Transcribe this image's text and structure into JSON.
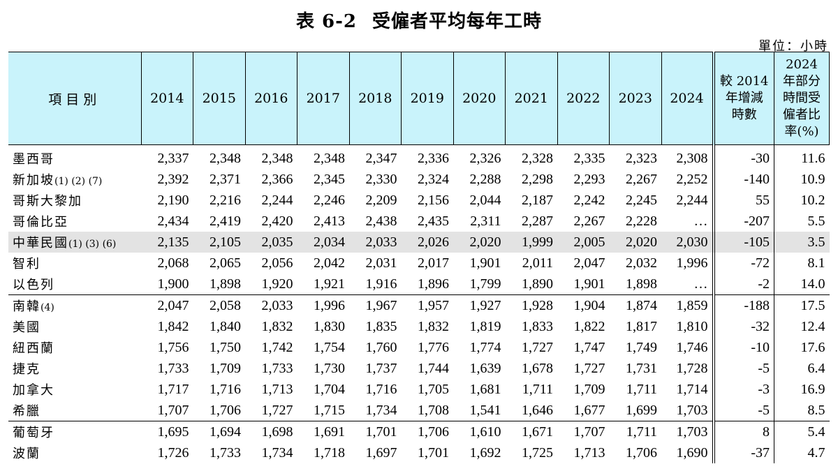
{
  "title": {
    "number": "表 6-2",
    "text": "受僱者平均每年工時"
  },
  "unit": "單位：小時",
  "header": {
    "item": "項目別",
    "years": [
      "2014",
      "2015",
      "2016",
      "2017",
      "2018",
      "2019",
      "2020",
      "2021",
      "2022",
      "2023",
      "2024"
    ],
    "diff": [
      "較 2014",
      "年增減",
      "時數"
    ],
    "part": [
      "2024",
      "年部分",
      "時間受",
      "僱者比",
      "率(%)"
    ]
  },
  "rows": [
    {
      "name": "墨西哥",
      "note": "",
      "values": [
        "2,337",
        "2,348",
        "2,348",
        "2,348",
        "2,347",
        "2,336",
        "2,326",
        "2,328",
        "2,335",
        "2,323",
        "2,308"
      ],
      "diff": "-30",
      "part": "11.6"
    },
    {
      "name": "新加坡",
      "note": "(1) (2) (7)",
      "values": [
        "2,392",
        "2,371",
        "2,366",
        "2,345",
        "2,330",
        "2,324",
        "2,288",
        "2,298",
        "2,293",
        "2,267",
        "2,252"
      ],
      "diff": "-140",
      "part": "10.9"
    },
    {
      "name": "哥斯大黎加",
      "note": "",
      "values": [
        "2,190",
        "2,216",
        "2,244",
        "2,246",
        "2,209",
        "2,156",
        "2,044",
        "2,187",
        "2,242",
        "2,245",
        "2,244"
      ],
      "diff": "55",
      "part": "10.2"
    },
    {
      "name": "哥倫比亞",
      "note": "",
      "values": [
        "2,434",
        "2,419",
        "2,420",
        "2,413",
        "2,438",
        "2,435",
        "2,311",
        "2,287",
        "2,267",
        "2,228",
        "…"
      ],
      "diff": "-207",
      "part": "5.5"
    },
    {
      "name": "中華民國",
      "note": "(1) (3) (6)",
      "values": [
        "2,135",
        "2,105",
        "2,035",
        "2,034",
        "2,033",
        "2,026",
        "2,020",
        "1,999",
        "2,005",
        "2,020",
        "2,030"
      ],
      "diff": "-105",
      "part": "3.5"
    },
    {
      "name": "智利",
      "note": "",
      "values": [
        "2,068",
        "2,065",
        "2,056",
        "2,042",
        "2,031",
        "2,017",
        "1,901",
        "2,011",
        "2,047",
        "2,032",
        "1,996"
      ],
      "diff": "-72",
      "part": "8.1"
    },
    {
      "name": "以色列",
      "note": "",
      "values": [
        "1,900",
        "1,898",
        "1,920",
        "1,921",
        "1,916",
        "1,896",
        "1,799",
        "1,890",
        "1,901",
        "1,898",
        "…"
      ],
      "diff": "-2",
      "part": "14.0"
    },
    {
      "name": "南韓",
      "note": "(4)",
      "values": [
        "2,047",
        "2,058",
        "2,033",
        "1,996",
        "1,967",
        "1,957",
        "1,927",
        "1,928",
        "1,904",
        "1,874",
        "1,859"
      ],
      "diff": "-188",
      "part": "17.5"
    },
    {
      "name": "美國",
      "note": "",
      "values": [
        "1,842",
        "1,840",
        "1,832",
        "1,830",
        "1,835",
        "1,832",
        "1,819",
        "1,833",
        "1,822",
        "1,817",
        "1,810"
      ],
      "diff": "-32",
      "part": "12.4"
    },
    {
      "name": "紐西蘭",
      "note": "",
      "values": [
        "1,756",
        "1,750",
        "1,742",
        "1,754",
        "1,760",
        "1,776",
        "1,774",
        "1,727",
        "1,747",
        "1,749",
        "1,746"
      ],
      "diff": "-10",
      "part": "17.6"
    },
    {
      "name": "捷克",
      "note": "",
      "values": [
        "1,733",
        "1,709",
        "1,733",
        "1,730",
        "1,737",
        "1,744",
        "1,639",
        "1,678",
        "1,727",
        "1,731",
        "1,728"
      ],
      "diff": "-5",
      "part": "6.4"
    },
    {
      "name": "加拿大",
      "note": "",
      "values": [
        "1,717",
        "1,716",
        "1,713",
        "1,704",
        "1,716",
        "1,705",
        "1,681",
        "1,711",
        "1,709",
        "1,711",
        "1,714"
      ],
      "diff": "-3",
      "part": "16.9"
    },
    {
      "name": "希臘",
      "note": "",
      "values": [
        "1,707",
        "1,706",
        "1,727",
        "1,715",
        "1,734",
        "1,708",
        "1,541",
        "1,646",
        "1,677",
        "1,699",
        "1,703"
      ],
      "diff": "-5",
      "part": "8.5"
    },
    {
      "name": "葡萄牙",
      "note": "",
      "values": [
        "1,695",
        "1,694",
        "1,698",
        "1,691",
        "1,701",
        "1,706",
        "1,610",
        "1,671",
        "1,707",
        "1,711",
        "1,703"
      ],
      "diff": "8",
      "part": "5.4"
    },
    {
      "name": "波蘭",
      "note": "",
      "values": [
        "1,726",
        "1,733",
        "1,734",
        "1,718",
        "1,697",
        "1,701",
        "1,692",
        "1,725",
        "1,713",
        "1,706",
        "1,690"
      ],
      "diff": "-37",
      "part": "4.7"
    }
  ]
}
